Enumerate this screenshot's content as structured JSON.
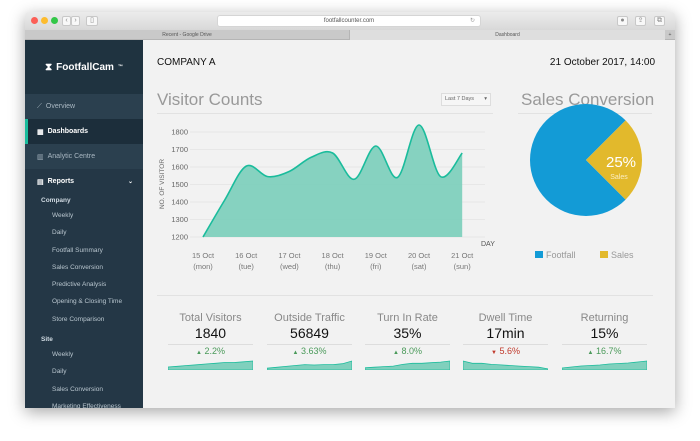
{
  "browser": {
    "url": "footfallcounter.com",
    "tabs": [
      "Recent - Google Drive",
      "Dashboard"
    ]
  },
  "sidebar": {
    "logo": "FootfallCam",
    "logo_tm": "™",
    "nav": [
      {
        "label": "Overview",
        "icon": "line-chart-icon"
      },
      {
        "label": "Dashboards",
        "icon": "grid-icon",
        "active": true
      },
      {
        "label": "Analytic Centre",
        "icon": "bar-chart-icon"
      },
      {
        "label": "Reports",
        "icon": "document-icon"
      }
    ],
    "company_label": "Company",
    "company_items": [
      "Weekly",
      "Daily",
      "Footfall Summary",
      "Sales Conversion",
      "Predictive Analysis",
      "Opening & Closing Time",
      "Store Comparison"
    ],
    "site_label": "Site",
    "site_items": [
      "Weekly",
      "Daily",
      "Sales Conversion",
      "Marketing Effectiveness"
    ]
  },
  "header": {
    "company": "COMPANY A",
    "datetime": "21 October 2017, 14:00"
  },
  "visitor": {
    "title": "Visitor Counts",
    "range": "Last 7 Days"
  },
  "sales": {
    "title": "Sales Conversion",
    "pct": "25%",
    "pct_label": "Sales"
  },
  "colors": {
    "accent": "#1abc9c",
    "area": "#80d0bd",
    "footfall": "#139bd6",
    "sales": "#e2b92c"
  },
  "chart_data": [
    {
      "type": "area",
      "ylabel": "NO. OF VISITOR",
      "xlabel": "DAY",
      "ylim": [
        1200,
        1800
      ],
      "yticks": [
        1200,
        1300,
        1400,
        1500,
        1600,
        1700,
        1800
      ],
      "grid": true,
      "categories": [
        "15 Oct|(mon)",
        "16 Oct|(tue)",
        "17 Oct|(wed)",
        "18 Oct|(thu)",
        "19 Oct|(fri)",
        "20 Oct|(sat)",
        "21 Oct|(sun)"
      ],
      "x": [
        0,
        0.5,
        1,
        1.5,
        2,
        2.5,
        3,
        3.5,
        4,
        4.5,
        5,
        5.5,
        6
      ],
      "values": [
        1200,
        1410,
        1605,
        1545,
        1575,
        1655,
        1680,
        1530,
        1720,
        1540,
        1840,
        1545,
        1680
      ]
    },
    {
      "type": "pie",
      "series": [
        {
          "name": "Footfall",
          "value": 75
        },
        {
          "name": "Sales",
          "value": 25
        }
      ],
      "legend": "bottom"
    }
  ],
  "kpis": [
    {
      "title": "Total Visitors",
      "value": "1840",
      "change": "2.2%",
      "dir": "up",
      "spark": [
        2,
        2.5,
        3,
        3.5,
        4,
        4.5,
        5,
        5,
        5.5,
        6
      ]
    },
    {
      "title": "Outside Traffic",
      "value": "56849",
      "change": "3.63%",
      "dir": "up",
      "spark": [
        2,
        3,
        4,
        5,
        6,
        5.5,
        6,
        6,
        7,
        10
      ]
    },
    {
      "title": "Turn In Rate",
      "value": "35%",
      "change": "8.0%",
      "dir": "up",
      "spark": [
        2,
        2.5,
        3,
        3.5,
        5,
        6,
        6,
        6.5,
        7,
        8
      ]
    },
    {
      "title": "Dwell Time",
      "value": "17min",
      "change": "5.6%",
      "dir": "down",
      "spark": [
        8,
        6,
        6,
        5,
        4.5,
        4,
        3.5,
        3,
        2.5,
        1
      ]
    },
    {
      "title": "Returning",
      "value": "15%",
      "change": "16.7%",
      "dir": "up",
      "spark": [
        2,
        3,
        4,
        4.5,
        5,
        6,
        6.5,
        7,
        8,
        9
      ]
    }
  ]
}
